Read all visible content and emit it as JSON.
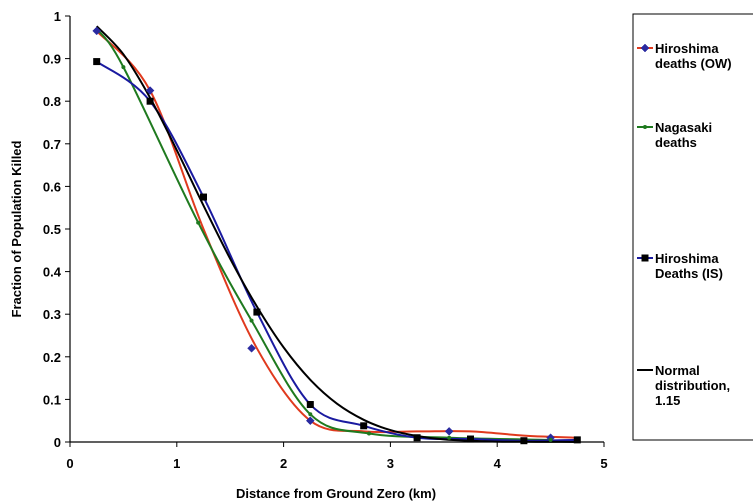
{
  "chart_data": {
    "type": "line",
    "xlabel": "Distance from Ground Zero (km)",
    "ylabel": "Fraction of Population Killed",
    "xlim": [
      0,
      5
    ],
    "ylim": [
      0,
      1
    ],
    "x_ticks": [
      "0",
      "1",
      "2",
      "3",
      "4",
      "5"
    ],
    "y_ticks": [
      "0",
      "0.1",
      "0.2",
      "0.3",
      "0.4",
      "0.5",
      "0.6",
      "0.7",
      "0.8",
      "0.9",
      "1"
    ],
    "grid": false,
    "legend_position": "right",
    "series": [
      {
        "name_lines": [
          "Hiroshima",
          "deaths (OW)"
        ],
        "color": "#e03a1e",
        "marker_color": "#2a2aa0",
        "marker": "diamond",
        "x": [
          0.25,
          0.75,
          1.25,
          1.75,
          2.25,
          2.75,
          3.25,
          3.75,
          4.25,
          4.75
        ],
        "y": [
          0.965,
          0.825,
          0.5,
          0.22,
          0.05,
          0.025,
          0.025,
          0.025,
          0.015,
          0.01
        ],
        "marker_x": [
          0.25,
          0.75,
          1.7,
          2.25,
          3.55,
          4.5
        ],
        "marker_y": [
          0.965,
          0.825,
          0.22,
          0.05,
          0.025,
          0.01
        ]
      },
      {
        "name_lines": [
          "Nagasaki",
          "deaths"
        ],
        "color": "#1f7a1f",
        "marker_color": "#1f7a1f",
        "marker": "dot",
        "x": [
          0.25,
          0.5,
          1.2,
          1.7,
          2.25,
          2.8,
          3.55,
          4.5
        ],
        "y": [
          0.97,
          0.88,
          0.515,
          0.285,
          0.065,
          0.02,
          0.01,
          0.005
        ],
        "marker_x": [
          0.5,
          1.2,
          1.7,
          2.25,
          2.8,
          3.55,
          4.5
        ],
        "marker_y": [
          0.88,
          0.515,
          0.285,
          0.065,
          0.02,
          0.01,
          0.005
        ]
      },
      {
        "name_lines": [
          "Hiroshima",
          "Deaths (IS)"
        ],
        "color": "#1a1aa0",
        "marker_color": "#000000",
        "marker": "square",
        "x": [
          0.25,
          0.75,
          1.25,
          1.75,
          2.25,
          2.75,
          3.25,
          3.75,
          4.25,
          4.75
        ],
        "y": [
          0.893,
          0.8,
          0.575,
          0.305,
          0.088,
          0.038,
          0.01,
          0.007,
          0.003,
          0.005
        ],
        "marker_x": [
          0.25,
          0.75,
          1.25,
          1.75,
          2.25,
          2.75,
          3.25,
          3.75,
          4.25,
          4.75
        ],
        "marker_y": [
          0.893,
          0.8,
          0.575,
          0.305,
          0.088,
          0.038,
          0.01,
          0.007,
          0.003,
          0.005
        ]
      },
      {
        "name_lines": [
          "Normal",
          "distribution,",
          "1.15"
        ],
        "color": "#000000",
        "marker_color": "#000000",
        "marker": "none",
        "x": [
          0.25,
          0.5,
          0.75,
          1.0,
          1.25,
          1.5,
          1.75,
          2.0,
          2.25,
          2.5,
          2.75,
          3.0,
          3.25,
          3.5,
          3.75,
          4.0,
          4.25,
          4.5,
          4.75
        ],
        "y": [
          0.976,
          0.91,
          0.808,
          0.685,
          0.555,
          0.43,
          0.318,
          0.222,
          0.146,
          0.09,
          0.052,
          0.028,
          0.014,
          0.006,
          0.003,
          0.001,
          0.0005,
          0.0002,
          0.0001
        ],
        "marker_x": [],
        "marker_y": []
      }
    ]
  }
}
